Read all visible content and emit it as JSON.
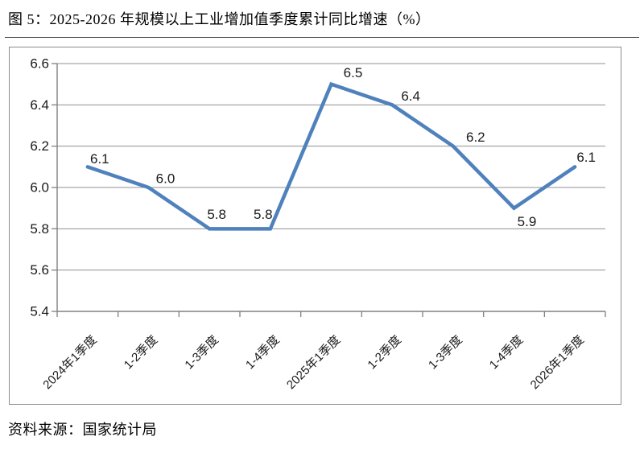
{
  "page": {
    "title": "图 5：2025-2026 年规模以上工业增加值季度累计同比增速（%）",
    "source": "资料来源：国家统计局"
  },
  "chart_data": {
    "type": "line",
    "title": "2025-2026 年规模以上工业增加值季度累计同比增速（%）",
    "categories": [
      "2024年1季度",
      "1-2季度",
      "1-3季度",
      "1-4季度",
      "2025年1季度",
      "1-2季度",
      "1-3季度",
      "1-4季度",
      "2026年1季度"
    ],
    "values": [
      6.1,
      6.0,
      5.8,
      5.8,
      6.5,
      6.4,
      6.2,
      5.9,
      6.1
    ],
    "data_labels": [
      "6.1",
      "6.0",
      "5.8",
      "5.8",
      "6.5",
      "6.4",
      "6.2",
      "5.9",
      "6.1"
    ],
    "y_ticks": [
      6.6,
      6.4,
      6.2,
      6.0,
      5.8,
      5.6,
      5.4
    ],
    "ylim": [
      5.4,
      6.6
    ],
    "xlabel": "",
    "ylabel": "",
    "grid": true,
    "legend": "none",
    "colors": {
      "line": "#4F81BD",
      "gridline": "#909090",
      "axis": "#808080",
      "text": "#1a1a1a"
    }
  }
}
